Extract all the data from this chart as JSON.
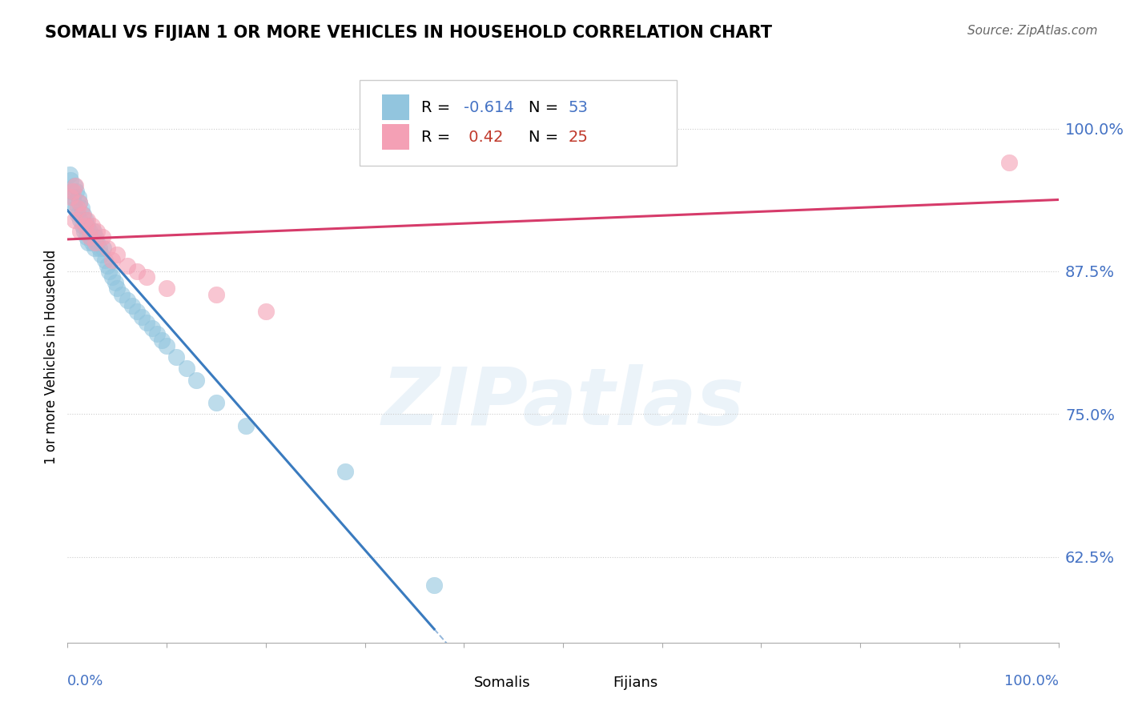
{
  "title": "SOMALI VS FIJIAN 1 OR MORE VEHICLES IN HOUSEHOLD CORRELATION CHART",
  "source": "Source: ZipAtlas.com",
  "ylabel": "1 or more Vehicles in Household",
  "ytick_labels": [
    "62.5%",
    "75.0%",
    "87.5%",
    "100.0%"
  ],
  "ytick_values": [
    0.625,
    0.75,
    0.875,
    1.0
  ],
  "xlim": [
    0.0,
    1.0
  ],
  "ylim": [
    0.55,
    1.05
  ],
  "R_somali": -0.614,
  "N_somali": 53,
  "R_fijian": 0.42,
  "N_fijian": 25,
  "somali_color": "#92c5de",
  "fijian_color": "#f4a0b5",
  "trend_somali_color": "#3a7bbf",
  "trend_fijian_color": "#d63b6a",
  "watermark_text": "ZIPatlas",
  "somali_x": [
    0.002,
    0.003,
    0.004,
    0.005,
    0.006,
    0.007,
    0.008,
    0.009,
    0.01,
    0.011,
    0.012,
    0.013,
    0.014,
    0.015,
    0.016,
    0.017,
    0.018,
    0.019,
    0.02,
    0.021,
    0.022,
    0.023,
    0.025,
    0.026,
    0.027,
    0.028,
    0.03,
    0.032,
    0.034,
    0.036,
    0.038,
    0.04,
    0.042,
    0.045,
    0.048,
    0.05,
    0.055,
    0.06,
    0.065,
    0.07,
    0.075,
    0.08,
    0.085,
    0.09,
    0.095,
    0.1,
    0.11,
    0.12,
    0.13,
    0.15,
    0.18,
    0.28,
    0.37
  ],
  "somali_y": [
    0.96,
    0.955,
    0.945,
    0.94,
    0.935,
    0.95,
    0.93,
    0.945,
    0.925,
    0.94,
    0.935,
    0.92,
    0.93,
    0.915,
    0.925,
    0.91,
    0.92,
    0.905,
    0.915,
    0.9,
    0.91,
    0.905,
    0.9,
    0.91,
    0.895,
    0.905,
    0.9,
    0.895,
    0.89,
    0.895,
    0.885,
    0.88,
    0.875,
    0.87,
    0.865,
    0.86,
    0.855,
    0.85,
    0.845,
    0.84,
    0.835,
    0.83,
    0.825,
    0.82,
    0.815,
    0.81,
    0.8,
    0.79,
    0.78,
    0.76,
    0.74,
    0.7,
    0.6
  ],
  "fijian_x": [
    0.003,
    0.005,
    0.007,
    0.008,
    0.01,
    0.012,
    0.013,
    0.015,
    0.018,
    0.02,
    0.022,
    0.025,
    0.028,
    0.03,
    0.035,
    0.04,
    0.045,
    0.05,
    0.06,
    0.07,
    0.08,
    0.1,
    0.15,
    0.2,
    0.95
  ],
  "fijian_y": [
    0.94,
    0.945,
    0.92,
    0.95,
    0.93,
    0.935,
    0.91,
    0.925,
    0.915,
    0.92,
    0.905,
    0.915,
    0.9,
    0.91,
    0.905,
    0.895,
    0.885,
    0.89,
    0.88,
    0.875,
    0.87,
    0.86,
    0.855,
    0.84,
    0.97
  ],
  "trend_somali_x_start": 0.0,
  "trend_somali_x_solid_end": 0.37,
  "trend_somali_x_dash_end": 1.0,
  "trend_fijian_x_start": 0.0,
  "trend_fijian_x_end": 1.0
}
